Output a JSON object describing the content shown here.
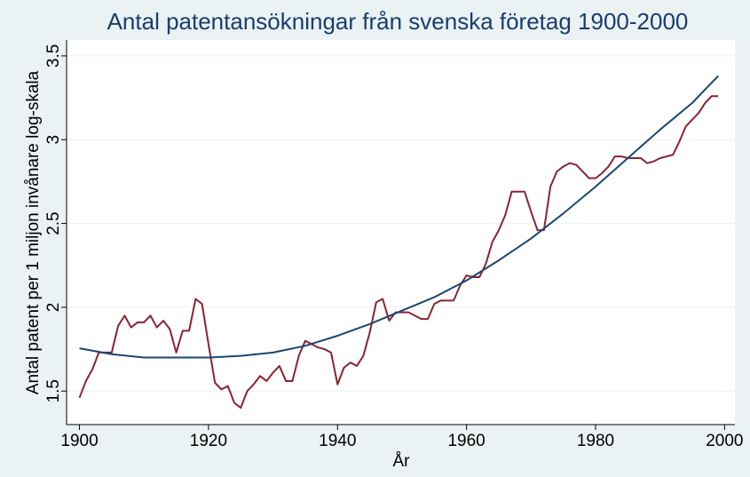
{
  "chart_data": {
    "type": "line",
    "title": "Antal patentansökningar från svenska företag 1900-2000",
    "x_label": "År",
    "y_label": "Antal patent per 1 miljon invånare log-skala",
    "xlim": [
      1898,
      2001.6
    ],
    "ylim": [
      1.3,
      3.595
    ],
    "xticks": [
      1900,
      1920,
      1940,
      1960,
      1980,
      2000
    ],
    "yticks": [
      1.5,
      2,
      2.5,
      3,
      3.5
    ],
    "grid": true,
    "series": [
      {
        "color": "#8b2332",
        "x": [
          1900,
          1901,
          1902,
          1903,
          1904,
          1905,
          1906,
          1907,
          1908,
          1909,
          1910,
          1911,
          1912,
          1913,
          1914,
          1915,
          1916,
          1917,
          1918,
          1919,
          1920,
          1921,
          1922,
          1923,
          1924,
          1925,
          1926,
          1927,
          1928,
          1929,
          1930,
          1931,
          1932,
          1933,
          1934,
          1935,
          1936,
          1937,
          1938,
          1939,
          1940,
          1941,
          1942,
          1943,
          1944,
          1945,
          1946,
          1947,
          1948,
          1949,
          1950,
          1951,
          1952,
          1953,
          1954,
          1955,
          1956,
          1957,
          1958,
          1959,
          1960,
          1961,
          1962,
          1963,
          1964,
          1965,
          1966,
          1967,
          1968,
          1969,
          1970,
          1971,
          1972,
          1973,
          1974,
          1975,
          1976,
          1977,
          1978,
          1979,
          1980,
          1981,
          1982,
          1983,
          1984,
          1985,
          1986,
          1987,
          1988,
          1989,
          1990,
          1991,
          1992,
          1993,
          1994,
          1995,
          1996,
          1997,
          1998,
          1999
        ],
        "values": [
          1.46,
          1.56,
          1.63,
          1.73,
          1.73,
          1.73,
          1.89,
          1.95,
          1.88,
          1.91,
          1.91,
          1.95,
          1.88,
          1.92,
          1.87,
          1.73,
          1.86,
          1.86,
          2.05,
          2.02,
          1.78,
          1.55,
          1.51,
          1.53,
          1.43,
          1.4,
          1.5,
          1.54,
          1.59,
          1.56,
          1.61,
          1.65,
          1.56,
          1.56,
          1.71,
          1.8,
          1.78,
          1.76,
          1.75,
          1.73,
          1.54,
          1.64,
          1.67,
          1.65,
          1.71,
          1.85,
          2.03,
          2.05,
          1.92,
          1.97,
          1.97,
          1.97,
          1.95,
          1.93,
          1.93,
          2.02,
          2.04,
          2.04,
          2.04,
          2.13,
          2.19,
          2.18,
          2.18,
          2.26,
          2.39,
          2.46,
          2.55,
          2.69,
          2.69,
          2.69,
          2.57,
          2.46,
          2.46,
          2.72,
          2.81,
          2.84,
          2.86,
          2.85,
          2.81,
          2.77,
          2.77,
          2.8,
          2.84,
          2.9,
          2.9,
          2.89,
          2.89,
          2.89,
          2.86,
          2.87,
          2.89,
          2.9,
          2.91,
          2.99,
          3.08,
          3.12,
          3.16,
          3.22,
          3.26,
          3.26
        ]
      },
      {
        "color": "#1a476f",
        "x": [
          1900,
          1905,
          1910,
          1915,
          1920,
          1925,
          1930,
          1935,
          1940,
          1945,
          1950,
          1955,
          1960,
          1965,
          1970,
          1975,
          1980,
          1985,
          1990,
          1995,
          1999
        ],
        "values": [
          1.755,
          1.72,
          1.7,
          1.7,
          1.7,
          1.71,
          1.73,
          1.77,
          1.83,
          1.9,
          1.98,
          2.06,
          2.16,
          2.28,
          2.41,
          2.56,
          2.72,
          2.89,
          3.06,
          3.22,
          3.38
        ]
      }
    ]
  }
}
